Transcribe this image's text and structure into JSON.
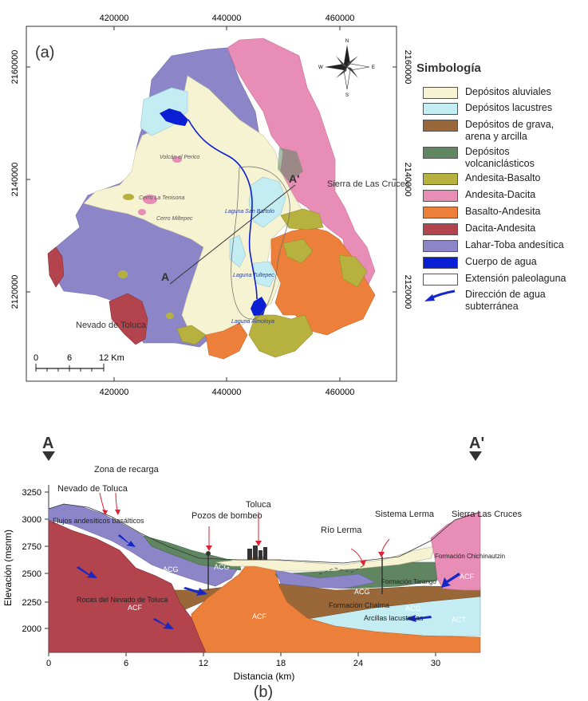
{
  "colors": {
    "aluviales": "#f6f3d2",
    "lacustres": "#c4ecf3",
    "grava": "#9a6838",
    "volcanoclasticos": "#5f8660",
    "andesita_basalto": "#b7b13f",
    "andesita_dacita": "#e78db6",
    "basalto_andesita": "#ec7f3a",
    "dacita_andesita": "#b3434c",
    "lahar": "#8c86c8",
    "agua": "#0a1fd3",
    "paleolaguna": "#ffffff",
    "flow_arrow": "#1428c8"
  },
  "map": {
    "panel_label": "(a)",
    "x_ticks": [
      "420000",
      "440000",
      "460000"
    ],
    "y_ticks": [
      "2160000",
      "2140000",
      "2120000"
    ],
    "compass": {
      "n": "N",
      "s": "S",
      "e": "E",
      "w": "W"
    },
    "scale": {
      "labels": [
        "0",
        "6",
        "12 Km"
      ]
    },
    "section_start": "A",
    "section_end": "A'",
    "places": {
      "sierra": "Sierra de Las Cruces",
      "nevado": "Nevado de Toluca",
      "volcan_perico": "Volcán el Perico",
      "cerro_tenisona": "Cerro La Tenisona",
      "cerro_miltepec": "Cerro Miltepec",
      "laguna_san_bartolo": "Laguna San Bartolo",
      "laguna_tultepec": "Laguna Tultepec",
      "laguna_almoloya": "Laguna Almoloya"
    }
  },
  "legend": {
    "title": "Simbología",
    "items": [
      {
        "label": "Depósitos aluviales",
        "color": "#f6f3d2"
      },
      {
        "label": "Depósitos lacustres",
        "color": "#c4ecf3"
      },
      {
        "label": "Depósitos de grava, arena y arcilla",
        "color": "#9a6838"
      },
      {
        "label": "Depósitos volcaniclásticos",
        "color": "#5f8660"
      },
      {
        "label": "Andesita-Basalto",
        "color": "#b7b13f"
      },
      {
        "label": "Andesita-Dacita",
        "color": "#e78db6"
      },
      {
        "label": "Basalto-Andesita",
        "color": "#ec7f3a"
      },
      {
        "label": "Dacita-Andesita",
        "color": "#b3434c"
      },
      {
        "label": "Lahar-Toba andesítica",
        "color": "#8c86c8"
      },
      {
        "label": "Cuerpo de agua",
        "color": "#0a1fd3"
      },
      {
        "label": "Extensión paleolaguna",
        "color": "#ffffff"
      },
      {
        "label": "Dirección de agua subterránea",
        "color": "#1428c8"
      }
    ]
  },
  "section": {
    "label_a": "A",
    "label_a_prime": "A'",
    "panel_label": "(b)",
    "y_axis_label": "Elevación (msnm)",
    "x_axis_label": "Distancia (km)",
    "y_ticks": [
      "3250",
      "3000",
      "2750",
      "2500",
      "2250",
      "2000"
    ],
    "x_ticks": [
      "0",
      "6",
      "12",
      "18",
      "24",
      "30"
    ],
    "annotations": {
      "nevado": "Nevado de Toluca",
      "zona": "Zona de recarga",
      "pozos": "Pozos de bombeo",
      "toluca": "Toluca",
      "rio": "Río Lerma",
      "sistema": "Sistema Lerma",
      "sierra": "Sierra Las Cruces",
      "flujos": "Flujos andesíticos basálticos",
      "rocas": "Rocas del Nevado de Toluca",
      "chichinautzin": "Formación Chichinautzin",
      "tarango": "Formación Tarango",
      "chalma": "Formación Chalma",
      "arcillas": "Arcillas lacustrinas"
    },
    "units": {
      "acg": "ACG",
      "acf": "ACF",
      "act": "ACT"
    }
  }
}
